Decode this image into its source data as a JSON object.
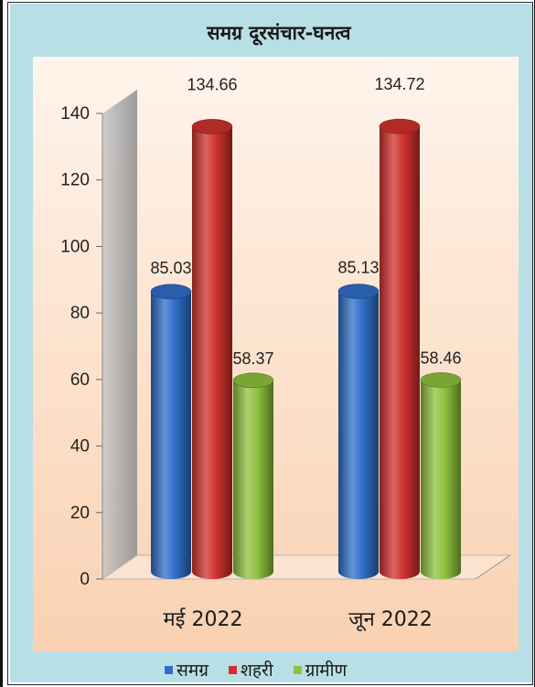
{
  "chart_data": {
    "type": "bar",
    "title": "समग्र दूरसंचार-घनत्व",
    "categories": [
      "मई 2022",
      "जून 2022"
    ],
    "series": [
      {
        "name": "समग्र",
        "color": "#2f6fc9",
        "values": [
          85.03,
          85.13
        ]
      },
      {
        "name": "शहरी",
        "color": "#d0312d",
        "values": [
          134.66,
          134.72
        ]
      },
      {
        "name": "ग्रामीण",
        "color": "#8fc23f",
        "values": [
          58.37,
          58.46
        ]
      }
    ],
    "data_labels": [
      [
        "85.03",
        "134.66",
        "58.37"
      ],
      [
        "85.13",
        "134.72",
        "58.46"
      ]
    ],
    "ylim": [
      0,
      140
    ],
    "yticks": [
      0,
      20,
      40,
      60,
      80,
      100,
      120,
      140
    ],
    "legend_position": "bottom",
    "style": "3d-cylinder"
  }
}
